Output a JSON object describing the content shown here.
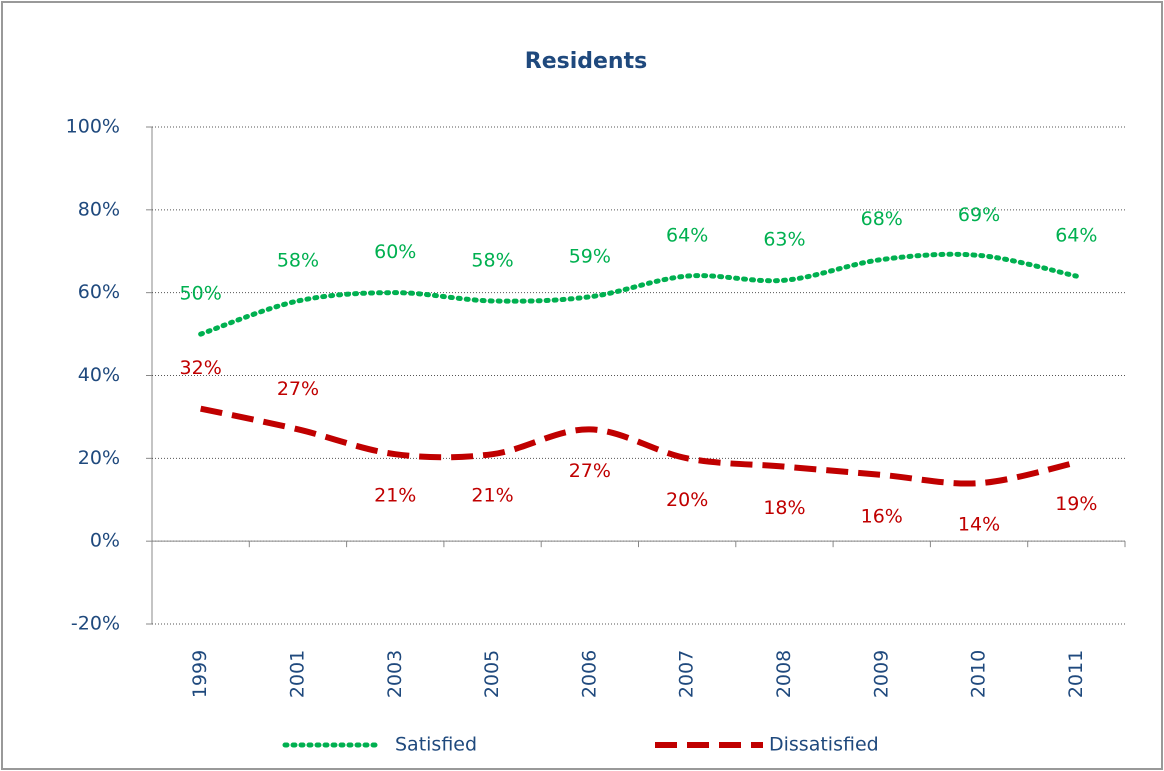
{
  "chart_data": {
    "type": "line",
    "title": "Residents",
    "categories": [
      "1999",
      "2001",
      "2003",
      "2005",
      "2006",
      "2007",
      "2008",
      "2009",
      "2010",
      "2011"
    ],
    "series": [
      {
        "name": "Satisfied",
        "color": "#00b050",
        "values": [
          50,
          58,
          60,
          58,
          59,
          64,
          63,
          68,
          69,
          64
        ],
        "value_labels": [
          "50%",
          "58%",
          "60%",
          "58%",
          "59%",
          "64%",
          "63%",
          "68%",
          "69%",
          "64%"
        ]
      },
      {
        "name": "Dissatisfied",
        "color": "#c00000",
        "values": [
          32,
          27,
          21,
          21,
          27,
          20,
          18,
          16,
          14,
          19
        ],
        "value_labels": [
          "32%",
          "27%",
          "21%",
          "21%",
          "27%",
          "20%",
          "18%",
          "16%",
          "14%",
          "19%"
        ]
      }
    ],
    "ylim": [
      -20,
      100
    ],
    "yticks": [
      {
        "value": -20,
        "label": "-20%"
      },
      {
        "value": 0,
        "label": "0%"
      },
      {
        "value": 20,
        "label": "20%"
      },
      {
        "value": 40,
        "label": "40%"
      },
      {
        "value": 60,
        "label": "60%"
      },
      {
        "value": 80,
        "label": "80%"
      },
      {
        "value": 100,
        "label": "100%"
      }
    ],
    "grid": true
  }
}
